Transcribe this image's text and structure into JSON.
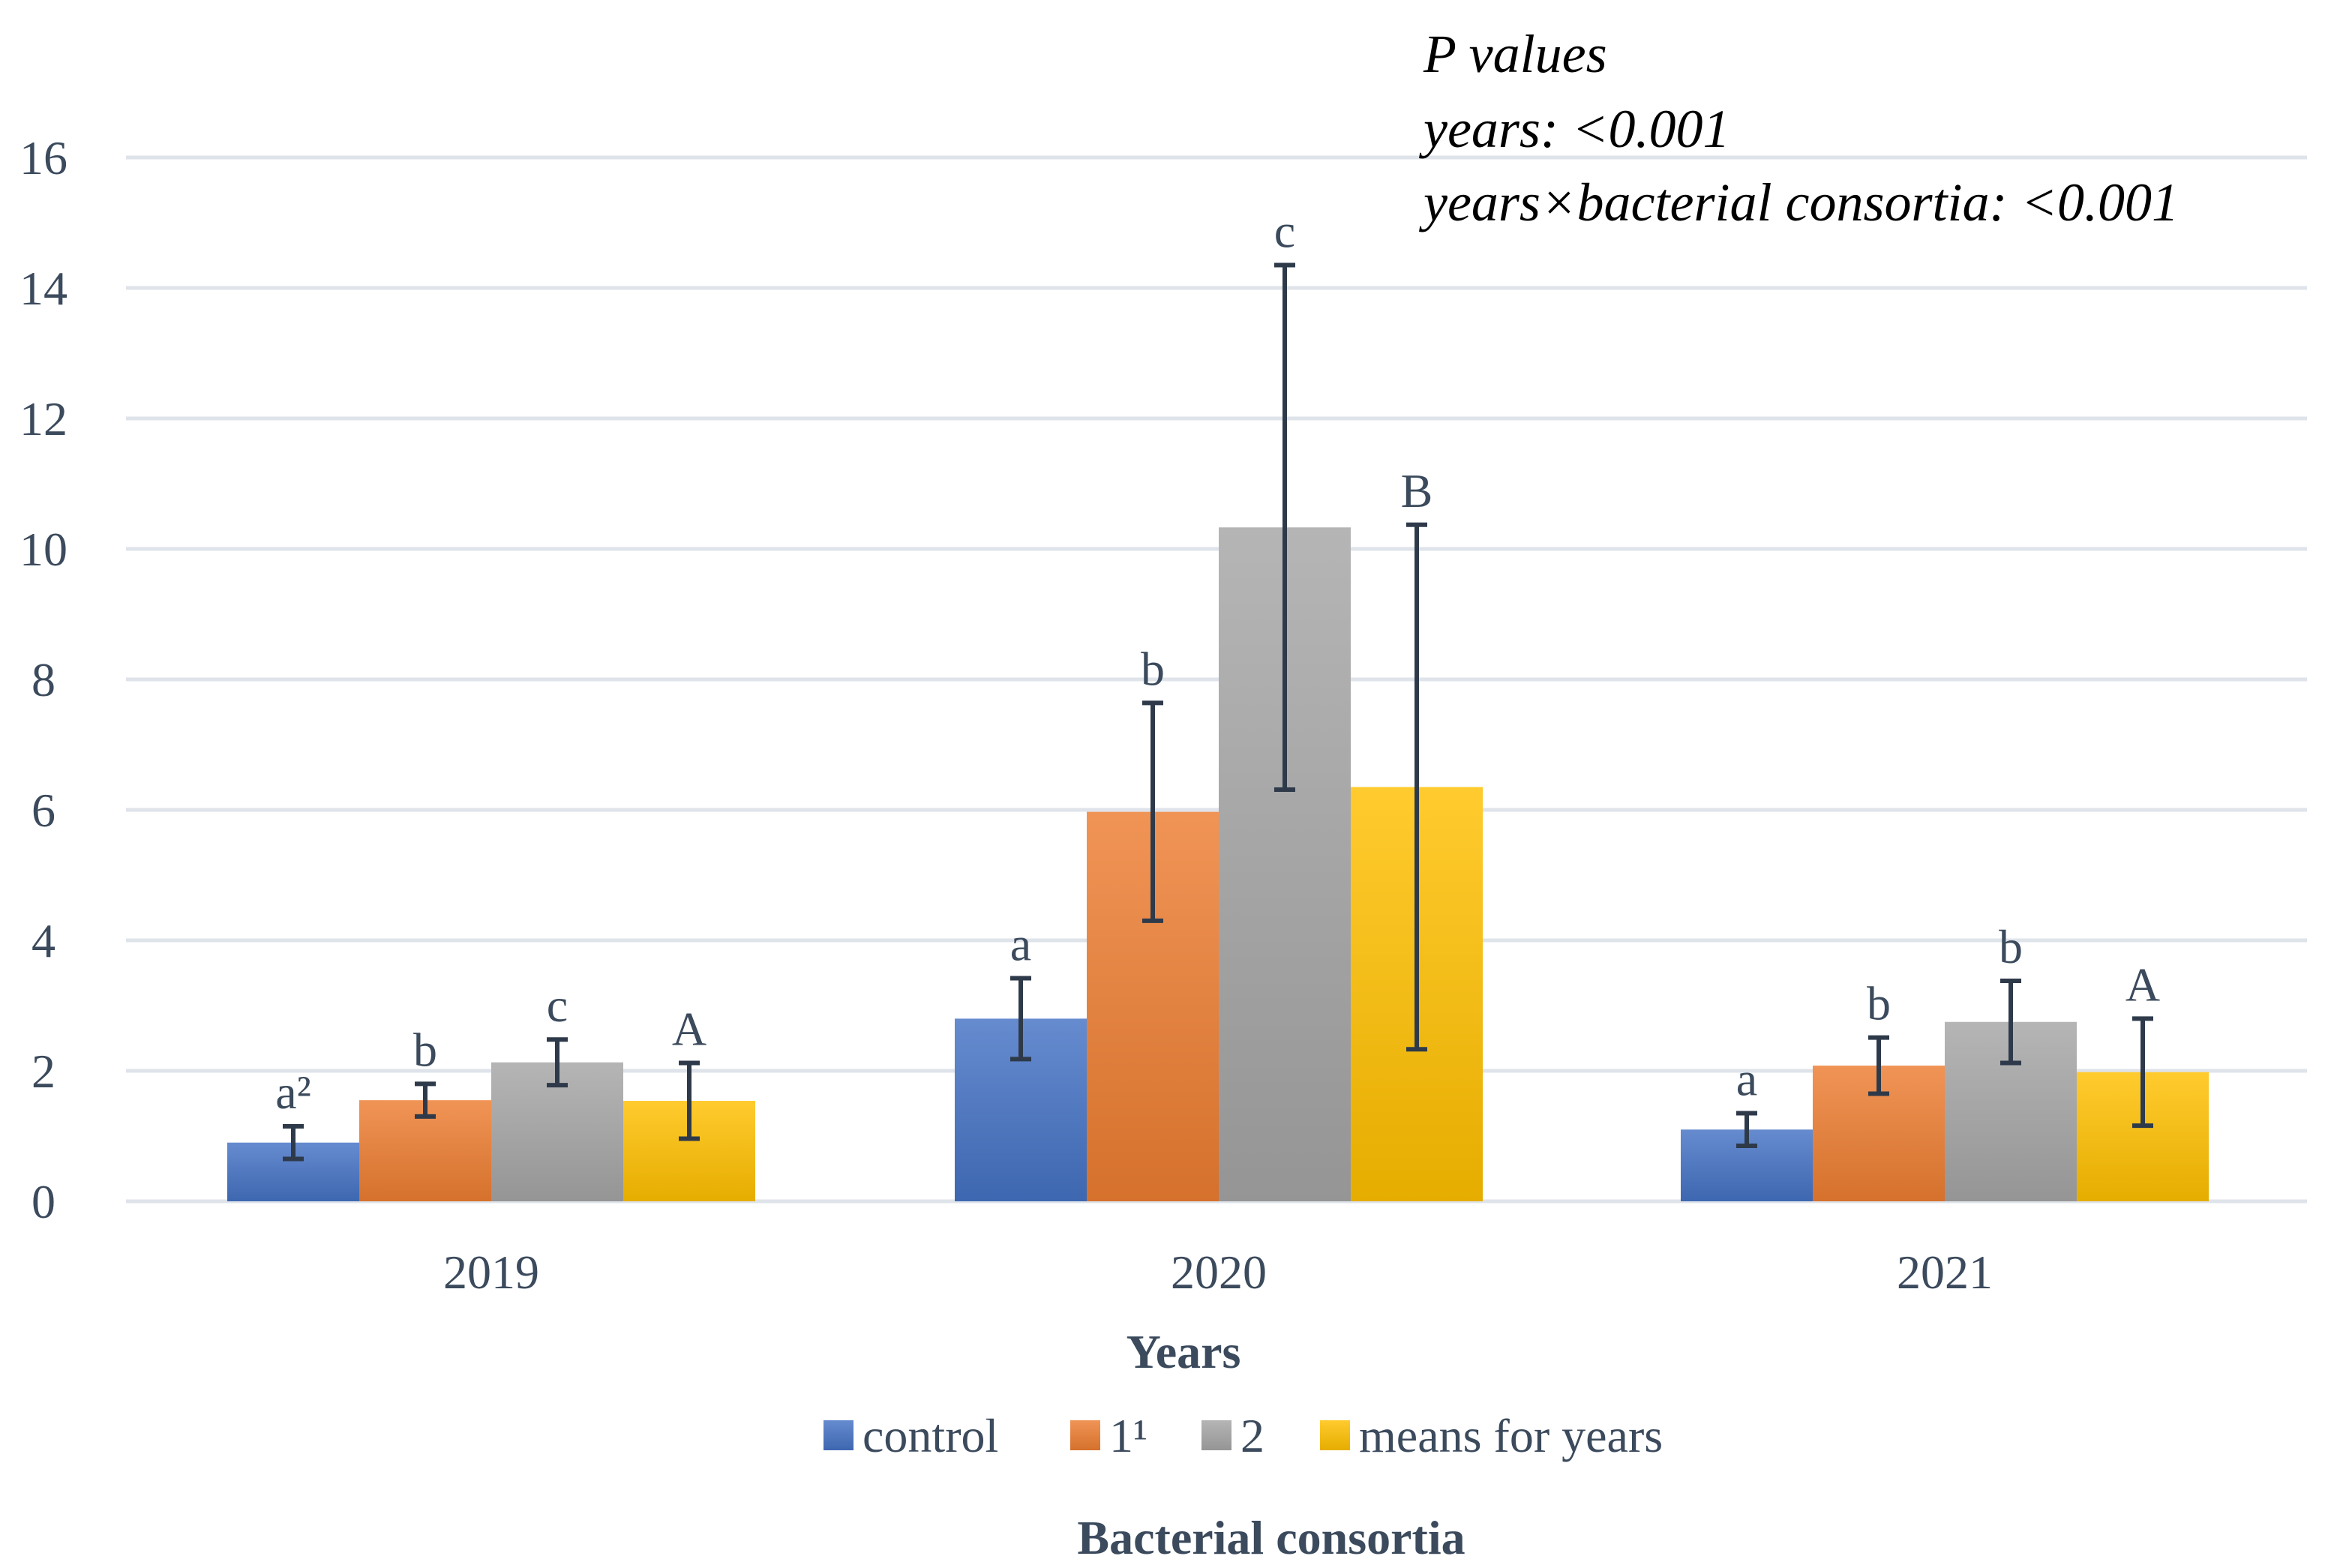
{
  "chart_data": {
    "type": "bar",
    "categories": [
      "2019",
      "2020",
      "2021"
    ],
    "series": [
      {
        "name": "control",
        "color": "#4472c4",
        "values": [
          0.9,
          2.8,
          1.1
        ],
        "errors": [
          0.25,
          0.62,
          0.25
        ],
        "letters": [
          "a²",
          "a",
          "a"
        ]
      },
      {
        "name": "1¹",
        "color": "#ed7d31",
        "values": [
          1.55,
          5.97,
          2.08
        ],
        "errors": [
          0.25,
          1.67,
          0.43
        ],
        "letters": [
          "b",
          "b",
          "b"
        ]
      },
      {
        "name": "2",
        "color": "#a5a5a5",
        "values": [
          2.13,
          10.33,
          2.75
        ],
        "errors": [
          0.35,
          4.02,
          0.63
        ],
        "letters": [
          "c",
          "c",
          "b"
        ]
      },
      {
        "name": "means for years",
        "color": "#ffc000",
        "values": [
          1.54,
          6.35,
          1.98
        ],
        "errors": [
          0.58,
          4.02,
          0.82
        ],
        "letters": [
          "A",
          "B",
          "A"
        ]
      }
    ],
    "ylim": [
      0,
      16
    ],
    "yticks": [
      "0",
      "2",
      "4",
      "6",
      "8",
      "10",
      "12",
      "14",
      "16"
    ],
    "xlabel": "Years",
    "legend_title": "Bacterial consortia",
    "legend_position": "bottom",
    "grid": true,
    "annotation": {
      "line1": "P values",
      "line2": "years: <0.001",
      "line3": "years×bacterial consortia: <0.001"
    }
  }
}
